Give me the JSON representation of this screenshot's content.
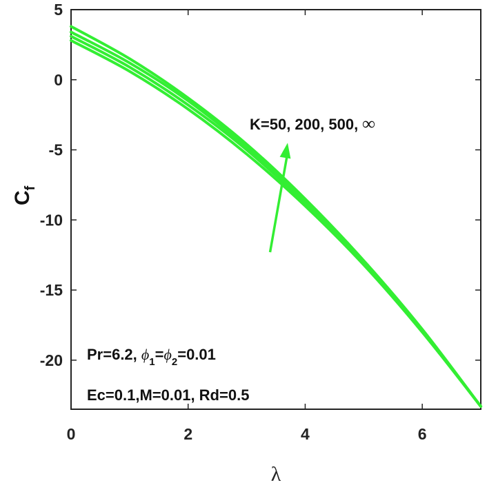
{
  "chart_data": {
    "type": "line",
    "xlabel": "λ",
    "ylabel": {
      "main": "C",
      "sub": "f"
    },
    "xlim": [
      0,
      7
    ],
    "ylim": [
      -23.5,
      5
    ],
    "xticks": [
      0,
      2,
      4,
      6
    ],
    "yticks": [
      5,
      0,
      -5,
      -10,
      -15,
      -20
    ],
    "grid": false,
    "line_color": "#33ee33",
    "x": [
      0,
      1,
      2,
      3,
      4,
      5,
      6,
      7
    ],
    "series": [
      {
        "values": [
          2.8,
          0.6,
          -2.1,
          -5.3,
          -9.0,
          -13.2,
          -18.0,
          -23.3
        ]
      },
      {
        "values": [
          3.1,
          0.9,
          -1.8,
          -5.0,
          -8.8,
          -13.1,
          -17.9,
          -23.3
        ]
      },
      {
        "values": [
          3.4,
          1.2,
          -1.5,
          -4.8,
          -8.6,
          -13.0,
          -17.9,
          -23.3
        ]
      },
      {
        "values": [
          3.8,
          1.5,
          -1.3,
          -4.6,
          -8.5,
          -12.9,
          -17.8,
          -23.3
        ]
      }
    ],
    "annotations": {
      "arrow_label_text": "K=50, 200, 500, ",
      "arrow_label_symbol": "∞",
      "arrow": {
        "from": [
          3.4,
          -12.3
        ],
        "to": [
          3.7,
          -4.5
        ]
      },
      "params_line1": {
        "a": "Pr=6.2, ",
        "phi1": "ϕ",
        "sub1": "1",
        "eq": "=",
        "phi2": "ϕ",
        "sub2": "2",
        "b": "=0.01"
      },
      "params_line2": "Ec=0.1,M=0.01, Rd=0.5"
    }
  }
}
